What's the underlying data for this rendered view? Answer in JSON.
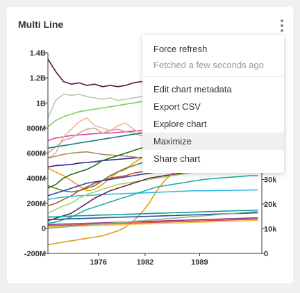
{
  "chart": {
    "title": "Multi Line",
    "left_axis_ticks": [
      "1.4B",
      "1.2B",
      "1B",
      "800M",
      "600M",
      "400M",
      "200M",
      "0",
      "-200M"
    ],
    "right_axis_ticks": [
      "30k",
      "20k",
      "10k",
      "0"
    ],
    "x_axis_ticks": [
      "1976",
      "1982",
      "1989"
    ]
  },
  "menu": {
    "items": [
      {
        "label": "Force refresh"
      },
      {
        "label": "Fetched a few seconds ago"
      },
      {
        "label": "Edit chart metadata"
      },
      {
        "label": "Export CSV"
      },
      {
        "label": "Explore chart"
      },
      {
        "label": "Maximize"
      },
      {
        "label": "Share chart"
      }
    ]
  },
  "chart_data": {
    "type": "line",
    "title": "Multi Line",
    "x": [
      1970,
      1971,
      1972,
      1973,
      1974,
      1975,
      1976,
      1977,
      1978,
      1979,
      1980,
      1981,
      1982,
      1983,
      1984,
      1985,
      1986,
      1987,
      1988,
      1989,
      1990,
      1991,
      1992,
      1993,
      1994,
      1995,
      1996,
      1997
    ],
    "ylim": [
      -200000000,
      1400000000
    ],
    "y2lim": [
      0,
      40000
    ],
    "xlim": [
      1970,
      1997.5
    ],
    "series": [
      {
        "color": "#5a0b3a",
        "values": [
          1350,
          1250,
          1170,
          1150,
          1160,
          1140,
          1150,
          1130,
          1140,
          1130,
          1140,
          1160,
          1170,
          1160,
          1150,
          1160,
          1170,
          1160,
          1150,
          1140,
          1150,
          1160,
          1150,
          1140,
          1150,
          1140,
          1150,
          1150
        ]
      },
      {
        "color": "#b5c9b0",
        "values": [
          880,
          1020,
          1070,
          1060,
          1070,
          1050,
          1040,
          1030,
          1040,
          1020,
          1030,
          1040,
          1050,
          1030,
          1040,
          1050,
          1040,
          1030,
          1040,
          1030,
          1040,
          1030,
          1040,
          1030,
          1020,
          1030,
          1020,
          1030
        ]
      },
      {
        "color": "#7bd15a",
        "values": [
          810,
          860,
          890,
          910,
          930,
          940,
          950,
          960,
          970,
          980,
          990,
          1000,
          1010,
          1020,
          1030,
          1035,
          1040,
          1045,
          1050,
          1055,
          1060,
          1065,
          1070,
          1075,
          1080,
          1085,
          1090,
          1095
        ]
      },
      {
        "color": "#e23bb0",
        "values": [
          700,
          720,
          730,
          740,
          745,
          750,
          755,
          760,
          760,
          765,
          770,
          775,
          780,
          785,
          790,
          795,
          800,
          805,
          810,
          810,
          815,
          820,
          820,
          825,
          830,
          830,
          835,
          840
        ]
      },
      {
        "color": "#f6b38b",
        "values": [
          560,
          600,
          730,
          790,
          850,
          880,
          820,
          800,
          780,
          820,
          840,
          790,
          760,
          740,
          720,
          700,
          690,
          680,
          660,
          650,
          640,
          630,
          620,
          610,
          600,
          590,
          580,
          570
        ]
      },
      {
        "color": "#c9a8a4",
        "values": [
          600,
          650,
          700,
          720,
          760,
          790,
          800,
          760,
          780,
          790,
          770,
          760,
          740,
          730,
          720,
          700,
          690,
          680,
          670,
          650,
          640,
          630,
          620,
          610,
          600,
          590,
          580,
          570
        ]
      },
      {
        "color": "#127d7d",
        "values": [
          640,
          650,
          660,
          670,
          680,
          690,
          700,
          710,
          720,
          730,
          740,
          750,
          760,
          770,
          780,
          790,
          790,
          780,
          770,
          760,
          750,
          740,
          730,
          720,
          710,
          700,
          690,
          680
        ]
      },
      {
        "color": "#3a1e9a",
        "values": [
          490,
          500,
          505,
          510,
          520,
          525,
          530,
          540,
          545,
          550,
          555,
          560,
          565,
          570,
          575,
          580,
          585,
          590,
          595,
          600,
          605,
          610,
          615,
          620,
          625,
          630,
          635,
          640
        ]
      },
      {
        "color": "#a69251",
        "values": [
          560,
          575,
          590,
          600,
          605,
          610,
          600,
          590,
          585,
          580,
          575,
          570,
          560,
          555,
          550,
          545,
          540,
          535,
          530,
          525,
          520,
          515,
          510,
          505,
          500,
          495,
          490,
          485
        ]
      },
      {
        "color": "#f59a1c",
        "values": [
          480,
          450,
          420,
          380,
          340,
          300,
          310,
          350,
          400,
          450,
          470,
          520,
          560,
          600,
          640,
          680,
          700,
          720,
          740,
          760,
          760,
          740,
          720,
          700,
          680,
          660,
          640,
          620
        ]
      },
      {
        "color": "#1a6e1f",
        "values": [
          320,
          350,
          400,
          430,
          450,
          470,
          500,
          540,
          560,
          580,
          600,
          620,
          640,
          660,
          680,
          700,
          710,
          720,
          730,
          740,
          745,
          750,
          755,
          760,
          760,
          760,
          760,
          760
        ]
      },
      {
        "color": "#5b7f22",
        "values": [
          340,
          320,
          300,
          290,
          300,
          320,
          340,
          380,
          420,
          450,
          480,
          500,
          520,
          540,
          560,
          570,
          580,
          590,
          600,
          610,
          620,
          630,
          640,
          650,
          660,
          670,
          680,
          690
        ]
      },
      {
        "color": "#c74d1d",
        "values": [
          180,
          200,
          230,
          260,
          300,
          330,
          360,
          380,
          400,
          410,
          420,
          440,
          450,
          460,
          470,
          480,
          490,
          500,
          510,
          520,
          520,
          520,
          510,
          500,
          490,
          480,
          470,
          460
        ]
      },
      {
        "color": "#2a43b3",
        "values": [
          260,
          280,
          300,
          320,
          340,
          360,
          370,
          380,
          390,
          400,
          410,
          420,
          430,
          440,
          450,
          455,
          460,
          465,
          470,
          475,
          480,
          480,
          480,
          475,
          470,
          465,
          460,
          455
        ]
      },
      {
        "color": "#2eb8e6",
        "values": [
          230,
          240,
          250,
          255,
          260,
          262,
          265,
          270,
          272,
          275,
          278,
          280,
          282,
          285,
          288,
          290,
          292,
          295,
          298,
          300,
          300,
          300,
          302,
          302,
          304,
          304,
          306,
          306
        ]
      },
      {
        "color": "#9ed86b",
        "values": [
          120,
          150,
          180,
          200,
          240,
          270,
          290,
          310,
          330,
          350,
          360,
          370,
          380,
          390,
          400,
          410,
          420,
          430,
          440,
          450,
          460,
          465,
          470,
          475,
          480,
          485,
          490,
          495
        ]
      },
      {
        "color": "#6d1f4a",
        "values": [
          60,
          80,
          100,
          120,
          160,
          200,
          240,
          270,
          300,
          320,
          340,
          360,
          380,
          400,
          410,
          420,
          430,
          440,
          450,
          455,
          460,
          465,
          470,
          475,
          480,
          480,
          480,
          480
        ]
      },
      {
        "color": "#14b3a2",
        "values": [
          40,
          50,
          70,
          90,
          120,
          150,
          170,
          190,
          210,
          230,
          250,
          270,
          290,
          310,
          330,
          340,
          350,
          360,
          370,
          380,
          390,
          395,
          400,
          405,
          410,
          415,
          420,
          420
        ]
      },
      {
        "color": "#e09b1a",
        "values": [
          -130,
          -120,
          -110,
          -100,
          -90,
          -80,
          -70,
          -60,
          -40,
          -20,
          10,
          60,
          120,
          200,
          300,
          380,
          440,
          480,
          520,
          550,
          570,
          590,
          600,
          610,
          620,
          630,
          640,
          650
        ]
      },
      {
        "color": "#8e3b8c",
        "values": [
          30,
          32,
          34,
          36,
          38,
          40,
          42,
          44,
          46,
          48,
          50,
          52,
          54,
          56,
          58,
          60,
          62,
          64,
          66,
          68,
          70,
          72,
          74,
          76,
          78,
          80,
          82,
          84
        ]
      },
      {
        "color": "#1f4f9e",
        "values": [
          70,
          72,
          74,
          76,
          78,
          80,
          82,
          84,
          86,
          88,
          90,
          92,
          94,
          96,
          98,
          100,
          102,
          104,
          106,
          108,
          110,
          112,
          114,
          116,
          118,
          120,
          122,
          124
        ]
      },
      {
        "color": "#e34a3b",
        "values": [
          20,
          22,
          24,
          26,
          28,
          30,
          32,
          34,
          36,
          38,
          40,
          42,
          44,
          46,
          48,
          50,
          52,
          54,
          56,
          58,
          60,
          62,
          64,
          66,
          68,
          70,
          72,
          74
        ]
      },
      {
        "color": "#0f9d8f",
        "values": [
          90,
          92,
          95,
          98,
          100,
          102,
          104,
          106,
          108,
          110,
          112,
          114,
          116,
          118,
          120,
          122,
          124,
          126,
          128,
          130,
          132,
          134,
          136,
          138,
          140,
          142,
          144,
          146
        ]
      },
      {
        "color": "#f4c24b",
        "values": [
          10,
          12,
          14,
          16,
          18,
          20,
          22,
          24,
          26,
          28,
          30,
          32,
          34,
          36,
          38,
          40,
          42,
          44,
          46,
          48,
          50,
          52,
          54,
          56,
          58,
          60,
          62,
          64
        ]
      },
      {
        "color": "#8ab48a",
        "values": [
          0,
          5,
          10,
          15,
          20,
          25,
          30,
          35,
          40,
          45,
          50,
          55,
          60,
          65,
          70,
          75,
          80,
          85,
          90,
          95,
          100,
          105,
          110,
          115,
          120,
          125,
          130,
          135
        ]
      }
    ]
  }
}
